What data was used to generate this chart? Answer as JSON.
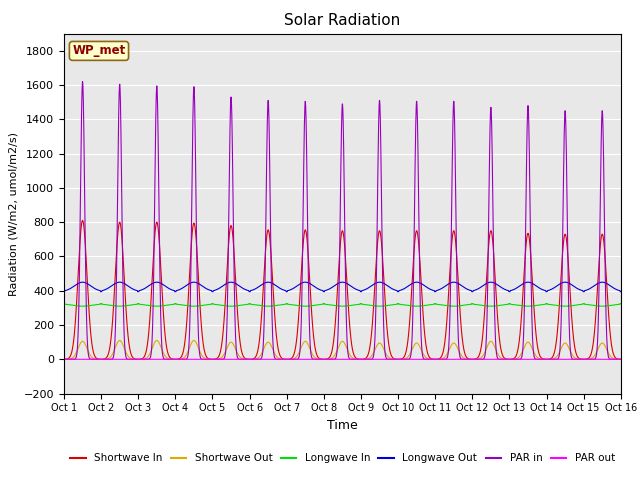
{
  "title": "Solar Radiation",
  "xlabel": "Time",
  "ylabel": "Radiation (W/m2, umol/m2/s)",
  "ylim": [
    -200,
    1900
  ],
  "yticks": [
    -200,
    0,
    200,
    400,
    600,
    800,
    1000,
    1200,
    1400,
    1600,
    1800
  ],
  "x_labels": [
    "Oct 1",
    "Oct 2",
    "Oct 3",
    "Oct 4",
    "Oct 5",
    "Oct 6",
    "Oct 7",
    "Oct 8",
    "Oct 9",
    "Oct 10",
    "Oct 11",
    "Oct 12",
    "Oct 13",
    "Oct 14",
    "Oct 15",
    "Oct 16"
  ],
  "station_label": "WP_met",
  "bg_color": "#e8e8e8",
  "series": {
    "shortwave_in": {
      "color": "#dd0000",
      "label": "Shortwave In"
    },
    "shortwave_out": {
      "color": "#ddaa00",
      "label": "Shortwave Out"
    },
    "longwave_in": {
      "color": "#00dd00",
      "label": "Longwave In"
    },
    "longwave_out": {
      "color": "#0000dd",
      "label": "Longwave Out"
    },
    "par_in": {
      "color": "#9900bb",
      "label": "PAR in"
    },
    "par_out": {
      "color": "#ff00ff",
      "label": "PAR out"
    }
  },
  "n_days": 15,
  "shortwave_in_peaks": [
    810,
    800,
    800,
    795,
    780,
    755,
    755,
    750,
    750,
    750,
    750,
    750,
    735,
    730,
    730
  ],
  "shortwave_out_peaks": [
    105,
    110,
    110,
    110,
    100,
    100,
    105,
    105,
    95,
    95,
    95,
    105,
    100,
    95,
    95
  ],
  "longwave_in_baseline": 325,
  "longwave_out_baseline": 395,
  "par_in_peaks": [
    1620,
    1605,
    1595,
    1590,
    1530,
    1510,
    1505,
    1490,
    1510,
    1505,
    1505,
    1470,
    1480,
    1450,
    1450
  ],
  "par_out_peaks_val": 0
}
